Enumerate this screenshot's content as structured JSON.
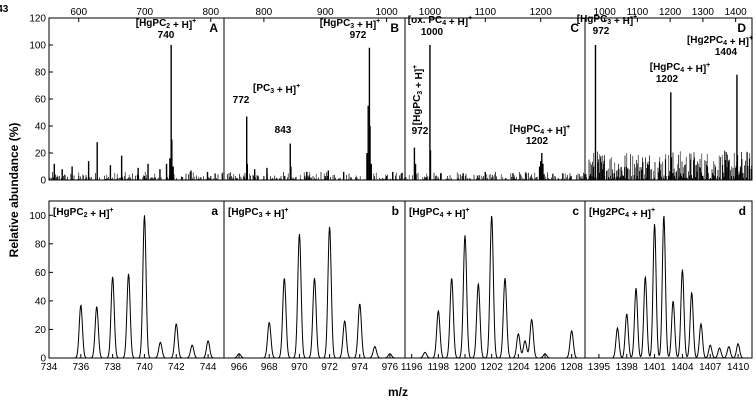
{
  "figure": {
    "ylabel": "Relative abundance (%)",
    "xlabel": "m/z"
  },
  "chart_data": [
    {
      "panel": "A",
      "type": "line",
      "row": "top",
      "title": "",
      "xlim": [
        555,
        820
      ],
      "ylim": [
        0,
        120
      ],
      "xticks": [
        600,
        700,
        800
      ],
      "yticks": [
        0,
        20,
        40,
        60,
        80,
        100,
        120
      ],
      "peaks": [
        [
          563,
          12
        ],
        [
          575,
          8
        ],
        [
          590,
          10
        ],
        [
          615,
          14
        ],
        [
          628,
          28
        ],
        [
          648,
          11
        ],
        [
          665,
          18
        ],
        [
          690,
          9
        ],
        [
          705,
          12
        ],
        [
          723,
          8
        ],
        [
          733,
          12
        ],
        [
          738,
          16
        ],
        [
          740,
          100
        ],
        [
          741,
          30
        ],
        [
          743,
          10
        ],
        [
          770,
          7
        ],
        [
          795,
          6
        ]
      ],
      "annotations": [
        {
          "label": "[HgPC2 + H]+",
          "mz": "740"
        }
      ]
    },
    {
      "panel": "B",
      "type": "line",
      "row": "top",
      "title": "",
      "xlim": [
        735,
        1030
      ],
      "ylim": [
        0,
        120
      ],
      "xticks": [
        800,
        900,
        1000
      ],
      "peaks": [
        [
          772,
          47
        ],
        [
          773,
          12
        ],
        [
          785,
          8
        ],
        [
          805,
          9
        ],
        [
          843,
          27
        ],
        [
          844,
          10
        ],
        [
          870,
          6
        ],
        [
          905,
          7
        ],
        [
          930,
          6
        ],
        [
          968,
          20
        ],
        [
          970,
          55
        ],
        [
          972,
          98
        ],
        [
          973,
          40
        ],
        [
          975,
          12
        ],
        [
          1010,
          6
        ]
      ],
      "annotations": [
        {
          "label": "[PC3 + H]+",
          "mz": "772"
        },
        {
          "label": "",
          "mz": "843"
        },
        {
          "label": "[HgPC3 + H]+",
          "mz": "972"
        }
      ]
    },
    {
      "panel": "C",
      "type": "line",
      "row": "top",
      "title": "",
      "xlim": [
        955,
        1280
      ],
      "ylim": [
        0,
        120
      ],
      "xticks": [
        1000,
        1100,
        1200
      ],
      "peaks": [
        [
          972,
          24
        ],
        [
          974,
          12
        ],
        [
          1000,
          100
        ],
        [
          1001,
          22
        ],
        [
          1020,
          5
        ],
        [
          1060,
          5
        ],
        [
          1100,
          6
        ],
        [
          1150,
          5
        ],
        [
          1198,
          10
        ],
        [
          1200,
          14
        ],
        [
          1202,
          20
        ],
        [
          1204,
          12
        ],
        [
          1240,
          5
        ]
      ],
      "annotations": [
        {
          "label": "[HgPC3 + H]+",
          "mz": "972"
        },
        {
          "label": "[ox. PC4 + H]+",
          "mz": "1000"
        },
        {
          "label": "[HgPC4 + H]+",
          "mz": "1202"
        }
      ]
    },
    {
      "panel": "D",
      "type": "line",
      "row": "top",
      "title": "",
      "xlim": [
        940,
        1450
      ],
      "ylim": [
        0,
        120
      ],
      "xticks": [
        1000,
        1100,
        1200,
        1300,
        1400
      ],
      "peaks": [
        [
          972,
          100
        ],
        [
          1202,
          65
        ],
        [
          1404,
          78
        ]
      ],
      "annotations": [
        {
          "label": "[HgPC3 + H]+",
          "mz": "972"
        },
        {
          "label": "[HgPC4 + H]+",
          "mz": "1202"
        },
        {
          "label": "[Hg2PC4 + H]+",
          "mz": "1404"
        }
      ]
    },
    {
      "panel": "a",
      "type": "line",
      "row": "bottom",
      "title": "",
      "xlim": [
        734,
        745
      ],
      "ylim": [
        0,
        110
      ],
      "xticks": [
        734,
        736,
        738,
        740,
        742,
        744
      ],
      "yticks": [
        0,
        20,
        40,
        60,
        80,
        100
      ],
      "peaks": [
        [
          736,
          37
        ],
        [
          737,
          36
        ],
        [
          738,
          57
        ],
        [
          739,
          59
        ],
        [
          740,
          100
        ],
        [
          741,
          11
        ],
        [
          742,
          24
        ],
        [
          743,
          9
        ],
        [
          744,
          12
        ]
      ],
      "annotations": [
        {
          "label": "[HgPC2 + H]+",
          "mz": ""
        }
      ]
    },
    {
      "panel": "b",
      "type": "line",
      "row": "bottom",
      "title": "",
      "xlim": [
        965,
        977
      ],
      "ylim": [
        0,
        110
      ],
      "xticks": [
        966,
        968,
        970,
        972,
        974,
        976
      ],
      "peaks": [
        [
          966,
          3
        ],
        [
          968,
          25
        ],
        [
          969,
          56
        ],
        [
          970,
          87
        ],
        [
          971,
          56
        ],
        [
          972,
          92
        ],
        [
          973,
          26
        ],
        [
          974,
          38
        ],
        [
          975,
          8
        ],
        [
          976,
          3
        ]
      ],
      "annotations": [
        {
          "label": "[HgPC3 + H]+",
          "mz": ""
        }
      ]
    },
    {
      "panel": "c",
      "type": "line",
      "row": "bottom",
      "title": "",
      "xlim": [
        1195.5,
        1209
      ],
      "ylim": [
        0,
        110
      ],
      "xticks": [
        1196,
        1198,
        1200,
        1202,
        1204,
        1206,
        1208
      ],
      "peaks": [
        [
          1197,
          4
        ],
        [
          1198,
          33
        ],
        [
          1199,
          56
        ],
        [
          1200,
          86
        ],
        [
          1201,
          52
        ],
        [
          1202,
          100
        ],
        [
          1203,
          56
        ],
        [
          1204,
          17
        ],
        [
          1204.5,
          12
        ],
        [
          1205,
          27
        ],
        [
          1206,
          3
        ],
        [
          1208,
          19
        ]
      ],
      "annotations": [
        {
          "label": "[HgPC4 + H]+",
          "mz": ""
        }
      ]
    },
    {
      "panel": "d",
      "type": "line",
      "row": "bottom",
      "title": "",
      "xlim": [
        1393.5,
        1411.5
      ],
      "ylim": [
        0,
        110
      ],
      "xticks": [
        1395,
        1398,
        1401,
        1404,
        1407,
        1410
      ],
      "peaks": [
        [
          1397,
          21
        ],
        [
          1398,
          31
        ],
        [
          1399,
          49
        ],
        [
          1400,
          57
        ],
        [
          1401,
          94
        ],
        [
          1402,
          100
        ],
        [
          1403,
          40
        ],
        [
          1404,
          62
        ],
        [
          1405,
          46
        ],
        [
          1406,
          24
        ],
        [
          1407,
          9
        ],
        [
          1408,
          7
        ],
        [
          1409,
          8
        ],
        [
          1410,
          10
        ]
      ],
      "annotations": [
        {
          "label": "[Hg2PC4 + H]+",
          "mz": ""
        }
      ]
    }
  ]
}
